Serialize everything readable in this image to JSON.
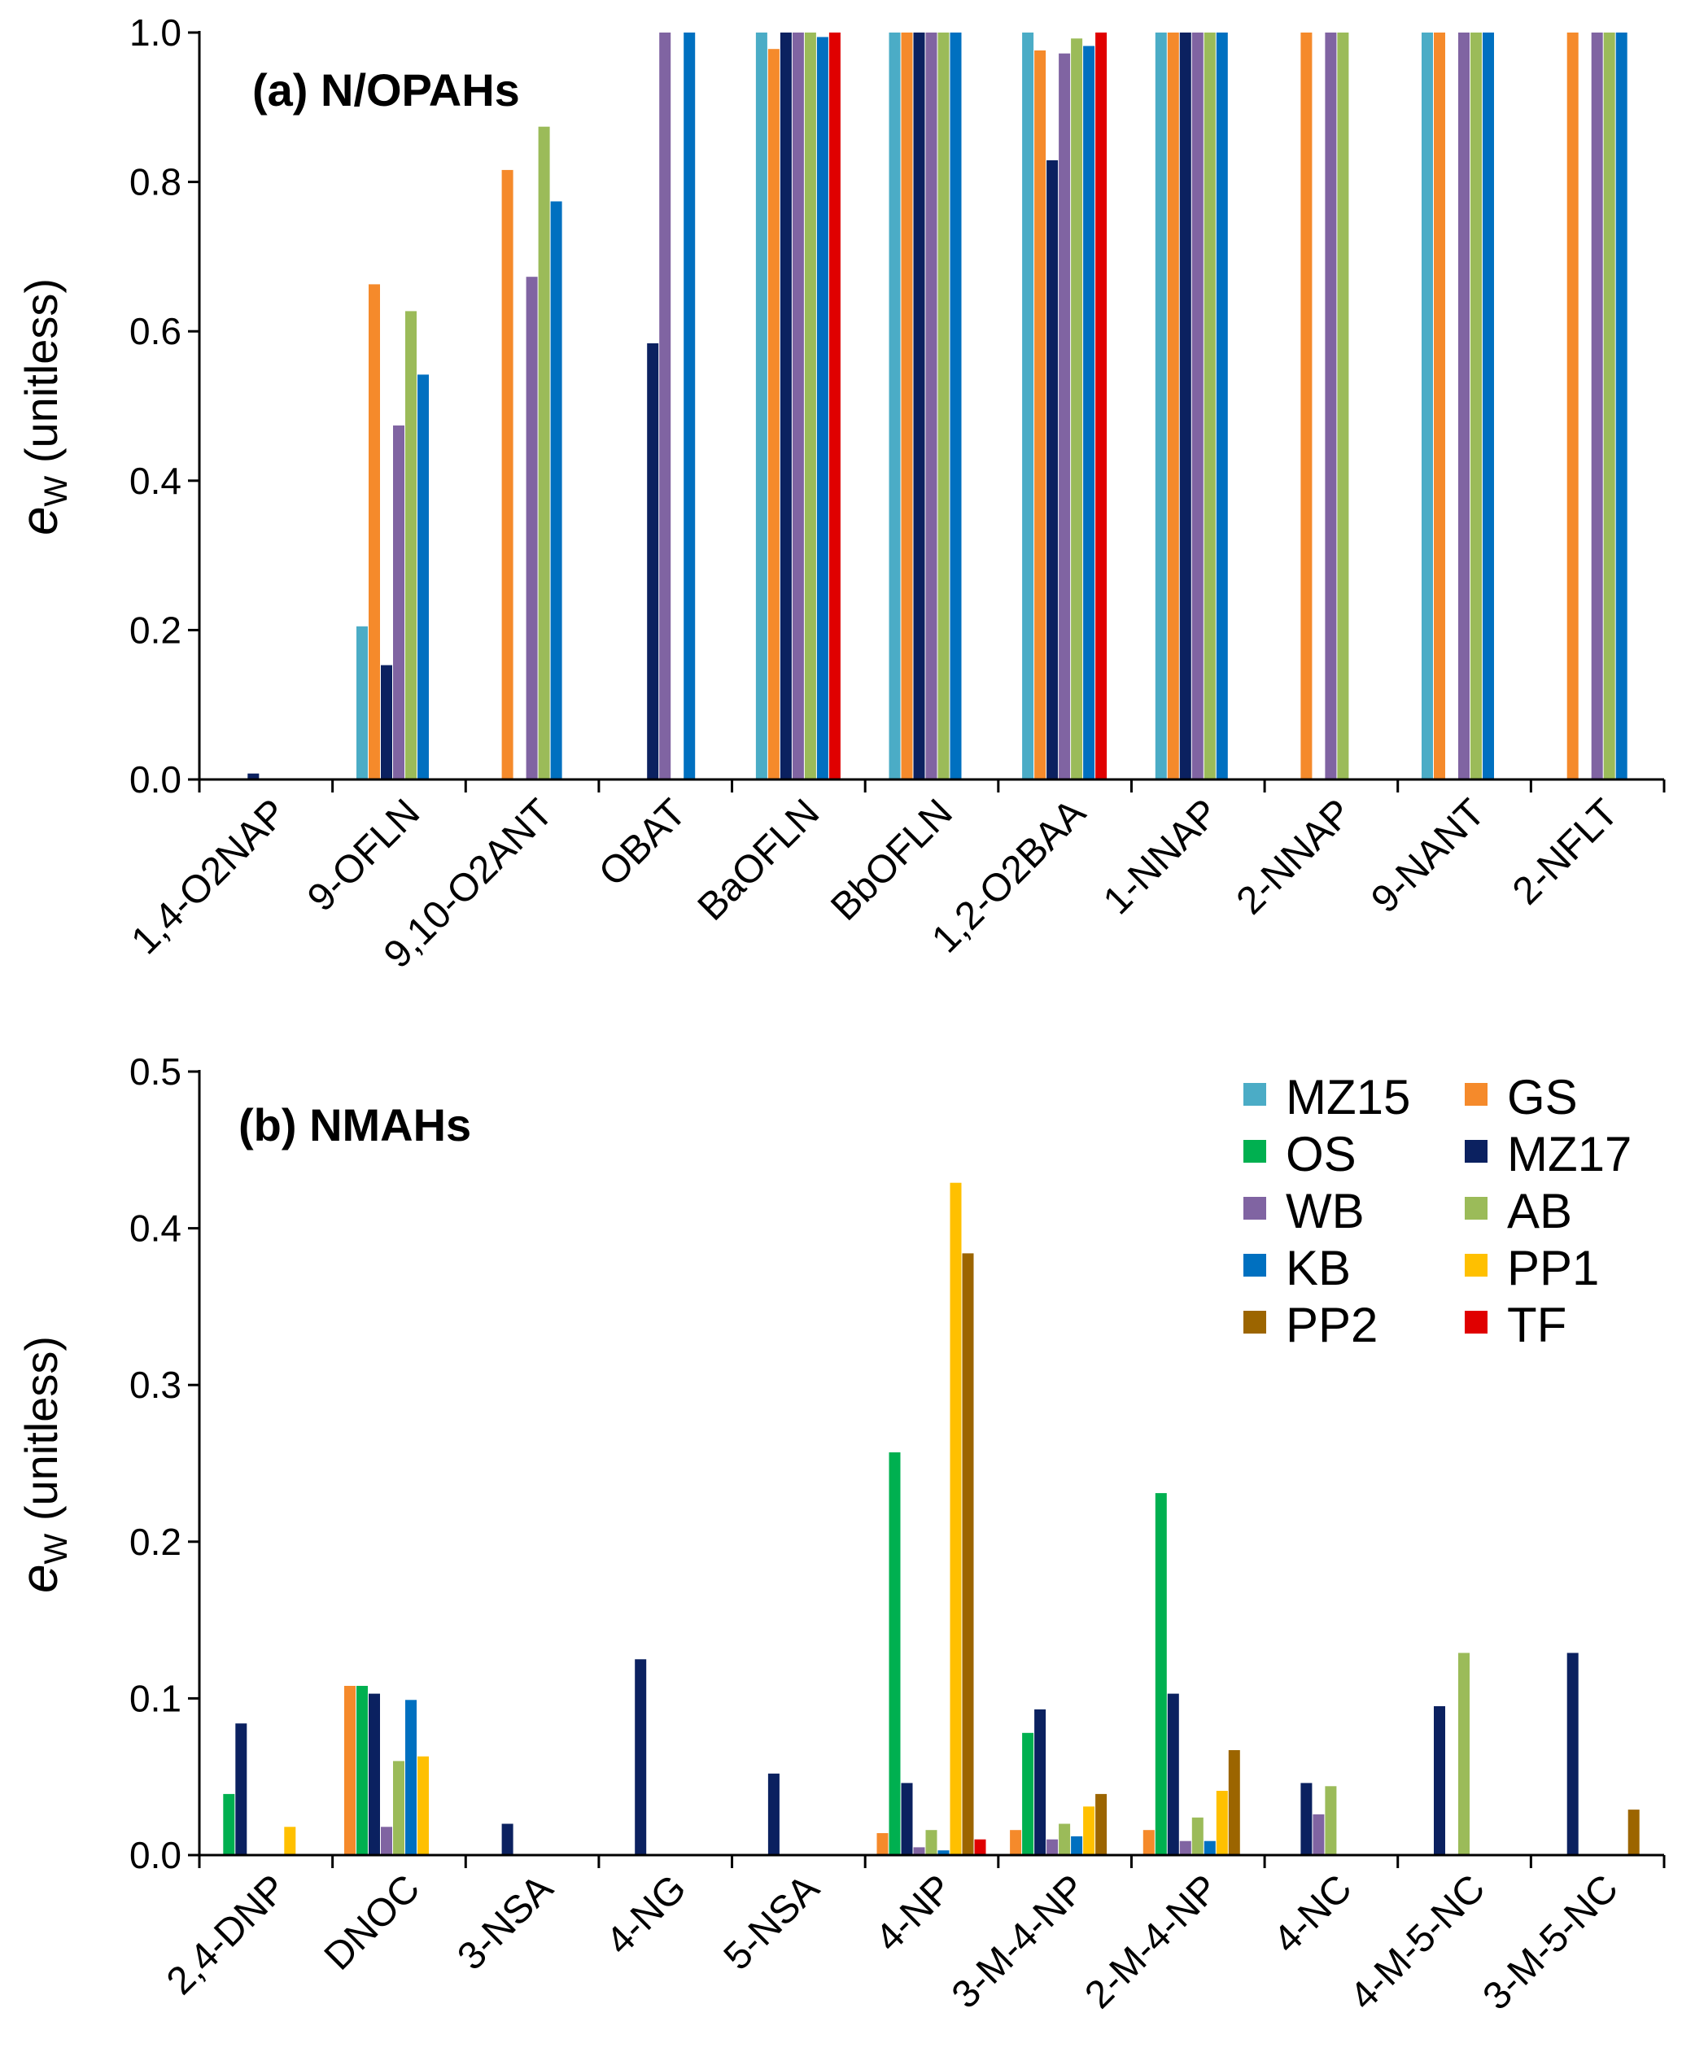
{
  "colors": {
    "MZ15": "#4BACC6",
    "GS": "#F58A2B",
    "OS": "#00B050",
    "MZ17": "#0B2160",
    "WB": "#8064A2",
    "AB": "#9BBB59",
    "KB": "#0070C0",
    "PP1": "#FFC000",
    "PP2": "#9C6500",
    "TF": "#E00000"
  },
  "chart_data": [
    {
      "type": "bar",
      "title": "(a) N/OPAHs",
      "ylabel_main": "e",
      "ylabel_sub": "W",
      "ylabel_rest": " (unitless)",
      "ylim": [
        0,
        1.0
      ],
      "yticks": [
        "0.0",
        "0.2",
        "0.4",
        "0.6",
        "0.8",
        "1.0"
      ],
      "categories": [
        "1,4-O2NAP",
        "9-OFLN",
        "9,10-O2ANT",
        "OBAT",
        "BaOFLN",
        "BbOFLN",
        "1,2-O2BAA",
        "1-NNAP",
        "2-NNAP",
        "9-NANT",
        "2-NFLT"
      ],
      "series": [
        {
          "name": "MZ15",
          "values": [
            0,
            0.205,
            0,
            0,
            1.0,
            1.0,
            1.0,
            1.0,
            0,
            1.0,
            0
          ]
        },
        {
          "name": "GS",
          "values": [
            0,
            0.663,
            0.816,
            0,
            0.978,
            1.0,
            0.976,
            1.0,
            1.0,
            1.0,
            1.0
          ]
        },
        {
          "name": "MZ17",
          "values": [
            0.008,
            0.153,
            0,
            0.584,
            1.0,
            1.0,
            0.829,
            1.0,
            0,
            0,
            0
          ]
        },
        {
          "name": "WB",
          "values": [
            0,
            0.474,
            0.673,
            1.0,
            1.0,
            1.0,
            0.972,
            1.0,
            1.0,
            1.0,
            1.0
          ]
        },
        {
          "name": "AB",
          "values": [
            0,
            0.627,
            0.874,
            0,
            1.0,
            1.0,
            0.992,
            1.0,
            1.0,
            1.0,
            1.0
          ]
        },
        {
          "name": "KB",
          "values": [
            0,
            0.542,
            0.774,
            1.0,
            0.994,
            1.0,
            0.982,
            1.0,
            0,
            1.0,
            1.0
          ]
        },
        {
          "name": "TF",
          "values": [
            0,
            0,
            0,
            0,
            1.0,
            0,
            1.0,
            0,
            0,
            0,
            0
          ]
        }
      ]
    },
    {
      "type": "bar",
      "title": "(b)  NMAHs",
      "ylabel_main": "e",
      "ylabel_sub": "W",
      "ylabel_rest": " (unitless)",
      "ylim": [
        0,
        0.5
      ],
      "yticks": [
        "0.0",
        "0.1",
        "0.2",
        "0.3",
        "0.4",
        "0.5"
      ],
      "categories": [
        "2,4-DNP",
        "DNOC",
        "3-NSA",
        "4-NG",
        "5-NSA",
        "4-NP",
        "3-M-4-NP",
        "2-M-4-NP",
        "4-NC",
        "4-M-5-NC",
        "3-M-5-NC"
      ],
      "series": [
        {
          "name": "GS",
          "values": [
            0,
            0.108,
            0,
            0,
            0,
            0.014,
            0.016,
            0.016,
            0,
            0,
            0
          ]
        },
        {
          "name": "OS",
          "values": [
            0.039,
            0.108,
            0,
            0,
            0,
            0.257,
            0.078,
            0.231,
            0,
            0,
            0
          ]
        },
        {
          "name": "MZ17",
          "values": [
            0.084,
            0.103,
            0.02,
            0.125,
            0.052,
            0.046,
            0.093,
            0.103,
            0.046,
            0.095,
            0.129
          ]
        },
        {
          "name": "WB",
          "values": [
            0,
            0.018,
            0,
            0,
            0,
            0.005,
            0.01,
            0.009,
            0.026,
            0,
            0
          ]
        },
        {
          "name": "AB",
          "values": [
            0,
            0.06,
            0,
            0,
            0,
            0.016,
            0.02,
            0.024,
            0.044,
            0.129,
            0
          ]
        },
        {
          "name": "KB",
          "values": [
            0,
            0.099,
            0,
            0,
            0,
            0.003,
            0.012,
            0.009,
            0,
            0,
            0
          ]
        },
        {
          "name": "PP1",
          "values": [
            0.018,
            0.063,
            0,
            0,
            0,
            0.429,
            0.031,
            0.041,
            0,
            0,
            0
          ]
        },
        {
          "name": "PP2",
          "values": [
            0,
            0,
            0,
            0,
            0,
            0.384,
            0.039,
            0.067,
            0,
            0,
            0.029
          ]
        },
        {
          "name": "TF",
          "values": [
            0,
            0,
            0,
            0,
            0,
            0.01,
            0,
            0,
            0,
            0,
            0
          ]
        }
      ],
      "legend": {
        "placement": "top-right",
        "entries": [
          "MZ15",
          "GS",
          "OS",
          "MZ17",
          "WB",
          "AB",
          "KB",
          "PP1",
          "PP2",
          "TF"
        ]
      }
    }
  ]
}
